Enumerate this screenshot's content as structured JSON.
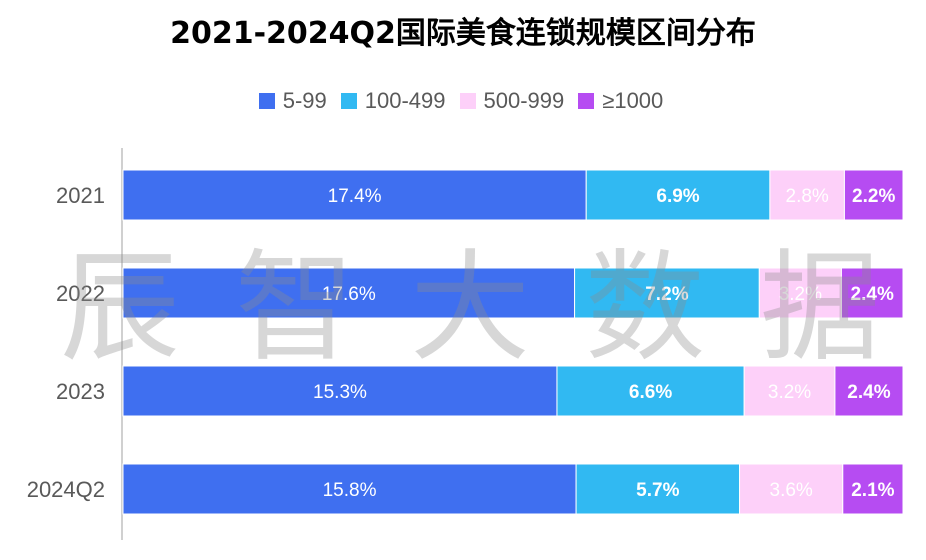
{
  "title": "2021-2024Q2国际美食连锁规模区间分布",
  "chart_data": {
    "type": "bar",
    "orientation": "horizontal",
    "stacked": true,
    "categories": [
      "2021",
      "2022",
      "2023",
      "2024Q2"
    ],
    "series": [
      {
        "name": "5-99",
        "color": "#3f6ff0",
        "values": [
          17.4,
          17.6,
          15.3,
          15.8
        ],
        "labels": [
          "17.4%",
          "17.6%",
          "15.3%",
          "15.8%"
        ]
      },
      {
        "name": "100-499",
        "color": "#31b9f2",
        "values": [
          6.9,
          7.2,
          6.6,
          5.7
        ],
        "labels": [
          "6.9%",
          "7.2%",
          "6.6%",
          "5.7%"
        ]
      },
      {
        "name": "500-999",
        "color": "#fdd0f9",
        "values": [
          2.8,
          3.2,
          3.2,
          3.6
        ],
        "labels": [
          "2.8%",
          "3.2%",
          "3.2%",
          "3.6%"
        ]
      },
      {
        "name": "≥1000",
        "color": "#b64cf2",
        "values": [
          2.2,
          2.4,
          2.4,
          2.1
        ],
        "labels": [
          "2.2%",
          "2.4%",
          "2.4%",
          "2.1%"
        ]
      }
    ],
    "legend_position": "top",
    "grid": false
  },
  "watermark": [
    "辰",
    "智",
    "大",
    "数",
    "据"
  ]
}
